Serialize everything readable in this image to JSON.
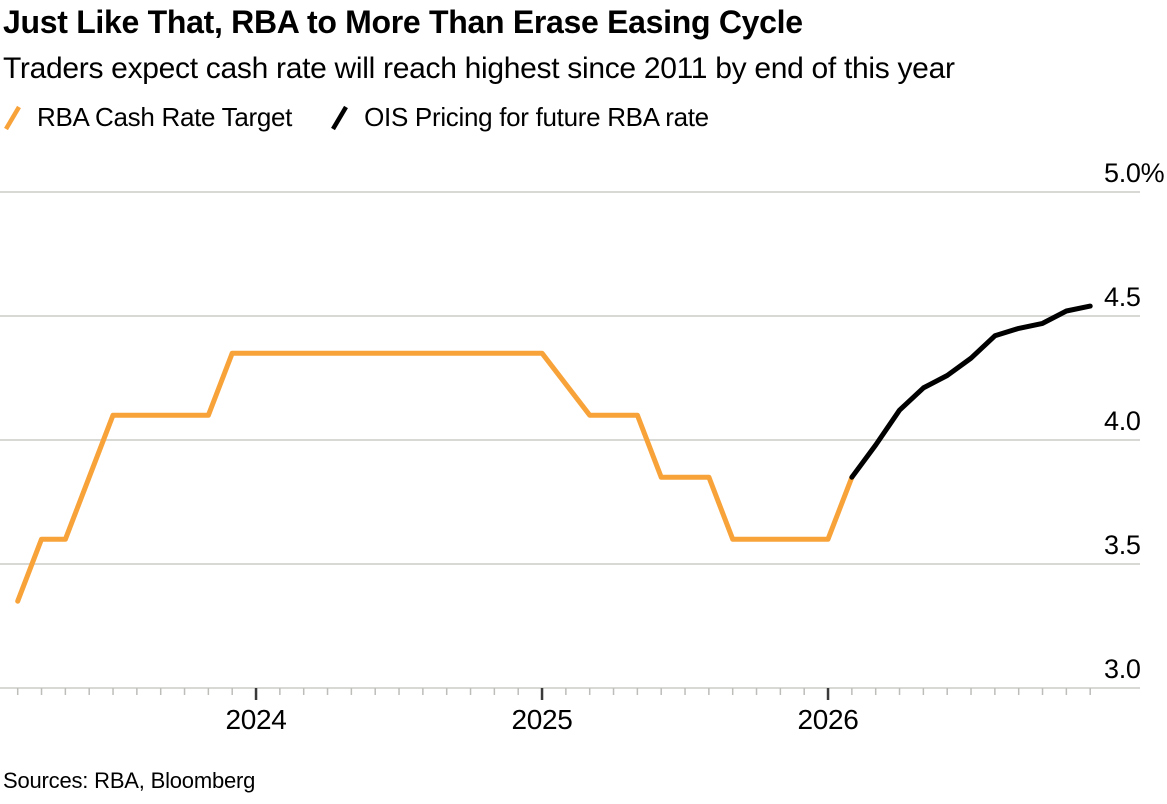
{
  "header": {
    "title": "Just Like That, RBA to More Than Erase Easing Cycle",
    "subtitle": "Traders expect cash rate will reach highest since 2011 by end of this year"
  },
  "legend": [
    {
      "label": "RBA Cash Rate Target",
      "color": "#F8A33A"
    },
    {
      "label": "OIS Pricing for future RBA rate",
      "color": "#000000"
    }
  ],
  "footer": {
    "sources": "Sources: RBA, Bloomberg"
  },
  "colors": {
    "accent_orange": "#F8A33A",
    "line_black": "#000000",
    "gridline": "#D8D8D5",
    "minor_tick": "#BDBDBA",
    "year_tick": "#3A3A3A",
    "text": "#000000"
  },
  "chart_data": {
    "type": "line",
    "title": "Just Like That, RBA to More Than Erase Easing Cycle",
    "subtitle": "Traders expect cash rate will reach highest since 2011 by end of this year",
    "unit": "percent",
    "grid": true,
    "legend_position": "top-left",
    "y_axis": {
      "side": "right",
      "range": [
        3.0,
        5.0
      ],
      "ticks": [
        5.0,
        4.5,
        4.0,
        3.5,
        3.0
      ],
      "tick_labels": [
        "5.0%",
        "4.5",
        "4.0",
        "3.5",
        "3.0"
      ]
    },
    "x_axis": {
      "minor_tick_interval": "month",
      "minor_tick_first": "2023-03",
      "minor_tick_last": "2026-12",
      "year_ticks": [
        {
          "date": "2024-01",
          "label": "2024"
        },
        {
          "date": "2025-01",
          "label": "2025"
        },
        {
          "date": "2026-01",
          "label": "2026"
        }
      ]
    },
    "series": [
      {
        "name": "RBA Cash Rate Target",
        "color": "#F8A33A",
        "points": [
          [
            "2023-02",
            3.35
          ],
          [
            "2023-03",
            3.6
          ],
          [
            "2023-04",
            3.6
          ],
          [
            "2023-05",
            3.85
          ],
          [
            "2023-06",
            4.1
          ],
          [
            "2023-10",
            4.1
          ],
          [
            "2023-11",
            4.35
          ],
          [
            "2024-12",
            4.35
          ],
          [
            "2025-02",
            4.1
          ],
          [
            "2025-04",
            4.1
          ],
          [
            "2025-05",
            3.85
          ],
          [
            "2025-07",
            3.85
          ],
          [
            "2025-08",
            3.6
          ],
          [
            "2025-12",
            3.6
          ],
          [
            "2026-01",
            3.85
          ]
        ]
      },
      {
        "name": "OIS Pricing for future RBA rate",
        "color": "#000000",
        "points": [
          [
            "2026-01",
            3.85
          ],
          [
            "2026-02",
            3.98
          ],
          [
            "2026-03",
            4.12
          ],
          [
            "2026-04",
            4.21
          ],
          [
            "2026-05",
            4.26
          ],
          [
            "2026-06",
            4.33
          ],
          [
            "2026-07",
            4.42
          ],
          [
            "2026-08",
            4.45
          ],
          [
            "2026-09",
            4.47
          ],
          [
            "2026-10",
            4.52
          ],
          [
            "2026-11",
            4.54
          ]
        ]
      }
    ]
  }
}
